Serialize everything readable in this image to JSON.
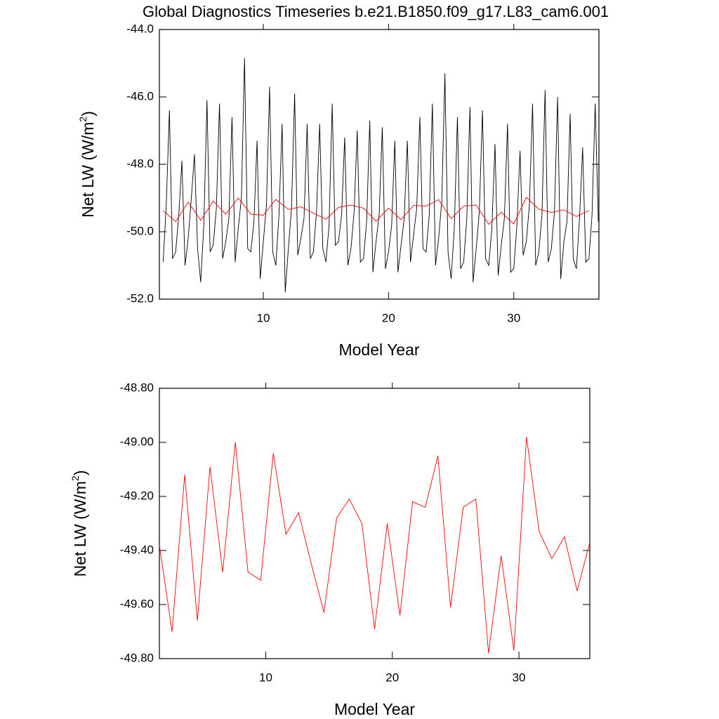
{
  "chart_data": [
    {
      "type": "line",
      "title": "Global Diagnostics Timeseries b.e21.B1850.f09_g17.L83_cam6.001",
      "xlabel": "Model Year",
      "ylabel": [
        "Net LW (W/m",
        "2",
        ")"
      ],
      "xlim": [
        1.7,
        36.8
      ],
      "xticks": [
        10,
        20,
        30
      ],
      "ylim": [
        -52,
        -44
      ],
      "yticks": [
        {
          "value": -44,
          "label": "-44.0"
        },
        {
          "value": -46,
          "label": "-46.0"
        },
        {
          "value": -48,
          "label": "-48.0"
        },
        {
          "value": -50,
          "label": "-50.0"
        },
        {
          "value": -52,
          "label": "-52.0"
        }
      ],
      "series": [
        {
          "color": "#000000",
          "x": [
            2,
            2.25,
            2.5,
            2.75,
            3,
            3.25,
            3.5,
            3.75,
            4,
            4.25,
            4.5,
            4.75,
            5,
            5.25,
            5.5,
            5.75,
            6,
            6.25,
            6.5,
            6.75,
            7,
            7.25,
            7.5,
            7.75,
            8,
            8.25,
            8.5,
            8.75,
            9,
            9.25,
            9.5,
            9.75,
            10,
            10.25,
            10.5,
            10.75,
            11,
            11.25,
            11.5,
            11.75,
            12,
            12.25,
            12.5,
            12.75,
            13,
            13.25,
            13.5,
            13.75,
            14,
            14.25,
            14.5,
            14.75,
            15,
            15.25,
            15.5,
            15.75,
            16,
            16.25,
            16.5,
            16.75,
            17,
            17.25,
            17.5,
            17.75,
            18,
            18.25,
            18.5,
            18.75,
            19,
            19.25,
            19.5,
            19.75,
            20,
            20.25,
            20.5,
            20.75,
            21,
            21.25,
            21.5,
            21.75,
            22,
            22.25,
            22.5,
            22.75,
            23,
            23.25,
            23.5,
            23.75,
            24,
            24.25,
            24.5,
            24.75,
            25,
            25.25,
            25.5,
            25.75,
            26,
            26.25,
            26.5,
            26.75,
            27,
            27.25,
            27.5,
            27.75,
            28,
            28.25,
            28.5,
            28.75,
            29,
            29.25,
            29.5,
            29.75,
            30,
            30.25,
            30.5,
            30.75,
            31,
            31.25,
            31.5,
            31.75,
            32,
            32.25,
            32.5,
            32.75,
            33,
            33.25,
            33.5,
            33.75,
            34,
            34.25,
            34.5,
            34.75,
            35,
            35.25,
            35.5,
            35.75,
            36,
            36.25,
            36.5,
            36.75
          ],
          "values": [
            -50.9,
            -49.2,
            -46.4,
            -50.8,
            -50.6,
            -49.5,
            -47.9,
            -51.0,
            -50.2,
            -49.0,
            -47.7,
            -50.5,
            -51.5,
            -49.8,
            -46.1,
            -50.6,
            -50.4,
            -49.3,
            -46.2,
            -50.8,
            -50.3,
            -49.6,
            -46.6,
            -50.9,
            -49.9,
            -49.0,
            -44.85,
            -50.5,
            -50.6,
            -49.7,
            -47.3,
            -51.4,
            -50.3,
            -49.2,
            -45.7,
            -50.6,
            -51.0,
            -49.5,
            -46.8,
            -51.8,
            -50.5,
            -49.3,
            -45.9,
            -50.7,
            -50.2,
            -49.6,
            -46.8,
            -50.8,
            -50.6,
            -49.4,
            -46.8,
            -50.5,
            -50.9,
            -49.8,
            -46.2,
            -50.4,
            -50.3,
            -49.5,
            -47.2,
            -51.0,
            -50.5,
            -49.4,
            -47.0,
            -50.9,
            -50.8,
            -49.7,
            -46.7,
            -51.2,
            -50.3,
            -49.5,
            -46.9,
            -51.1,
            -50.6,
            -49.8,
            -47.3,
            -51.2,
            -50.4,
            -49.6,
            -47.3,
            -50.9,
            -50.1,
            -49.3,
            -46.6,
            -50.5,
            -50.6,
            -49.5,
            -46.2,
            -51.0,
            -50.2,
            -49.1,
            -45.3,
            -50.6,
            -51.4,
            -49.9,
            -46.6,
            -51.1,
            -50.9,
            -49.6,
            -46.3,
            -51.5,
            -50.5,
            -49.4,
            -46.4,
            -50.8,
            -51.0,
            -49.9,
            -47.4,
            -51.3,
            -50.4,
            -49.6,
            -46.8,
            -51.2,
            -51.1,
            -49.8,
            -47.6,
            -50.7,
            -50.3,
            -49.2,
            -46.2,
            -51.0,
            -50.6,
            -49.5,
            -45.8,
            -50.9,
            -50.5,
            -49.4,
            -46.0,
            -51.4,
            -50.3,
            -49.7,
            -46.5,
            -50.8,
            -51.1,
            -49.6,
            -47.5,
            -50.9,
            -50.8,
            -49.5,
            -46.2,
            -49.7
          ]
        },
        {
          "color": "#ff0000",
          "x": [
            2,
            3,
            4,
            5,
            6,
            7,
            8,
            9,
            10,
            11,
            12,
            13,
            14,
            15,
            16,
            17,
            18,
            19,
            20,
            21,
            22,
            23,
            24,
            25,
            26,
            27,
            28,
            29,
            30,
            31,
            32,
            33,
            34,
            35,
            36
          ],
          "values": [
            -49.38,
            -49.7,
            -49.12,
            -49.66,
            -49.09,
            -49.48,
            -49.0,
            -49.48,
            -49.51,
            -49.04,
            -49.34,
            -49.26,
            -49.45,
            -49.63,
            -49.28,
            -49.21,
            -49.3,
            -49.69,
            -49.3,
            -49.64,
            -49.22,
            -49.24,
            -49.05,
            -49.61,
            -49.24,
            -49.21,
            -49.78,
            -49.42,
            -49.77,
            -48.98,
            -49.33,
            -49.43,
            -49.35,
            -49.55,
            -49.37
          ]
        }
      ]
    },
    {
      "type": "line",
      "xlabel": "Model Year",
      "ylabel": [
        "Net LW (W/m",
        "2",
        ")"
      ],
      "xlim": [
        1.6,
        35.6
      ],
      "xticks": [
        10,
        20,
        30
      ],
      "ylim": [
        -49.8,
        -48.8
      ],
      "yticks": [
        {
          "value": -48.8,
          "label": "-48.80"
        },
        {
          "value": -49.0,
          "label": "-49.00"
        },
        {
          "value": -49.2,
          "label": "-49.20"
        },
        {
          "value": -49.4,
          "label": "-49.40"
        },
        {
          "value": -49.6,
          "label": "-49.60"
        },
        {
          "value": -49.8,
          "label": "-49.80"
        }
      ],
      "series": [
        {
          "color": "#ff0000",
          "x": [
            1.6,
            2.6,
            3.6,
            4.6,
            5.6,
            6.6,
            7.6,
            8.6,
            9.6,
            10.6,
            11.6,
            12.6,
            13.6,
            14.6,
            15.6,
            16.6,
            17.6,
            18.6,
            19.6,
            20.6,
            21.6,
            22.6,
            23.6,
            24.6,
            25.6,
            26.6,
            27.6,
            28.6,
            29.6,
            30.6,
            31.6,
            32.6,
            33.6,
            34.6,
            35.6
          ],
          "values": [
            -49.38,
            -49.7,
            -49.12,
            -49.66,
            -49.09,
            -49.48,
            -49.0,
            -49.48,
            -49.51,
            -49.04,
            -49.34,
            -49.26,
            -49.45,
            -49.63,
            -49.28,
            -49.21,
            -49.3,
            -49.69,
            -49.3,
            -49.64,
            -49.22,
            -49.24,
            -49.05,
            -49.61,
            -49.24,
            -49.21,
            -49.78,
            -49.42,
            -49.77,
            -48.98,
            -49.33,
            -49.43,
            -49.35,
            -49.55,
            -49.37
          ]
        }
      ]
    }
  ]
}
